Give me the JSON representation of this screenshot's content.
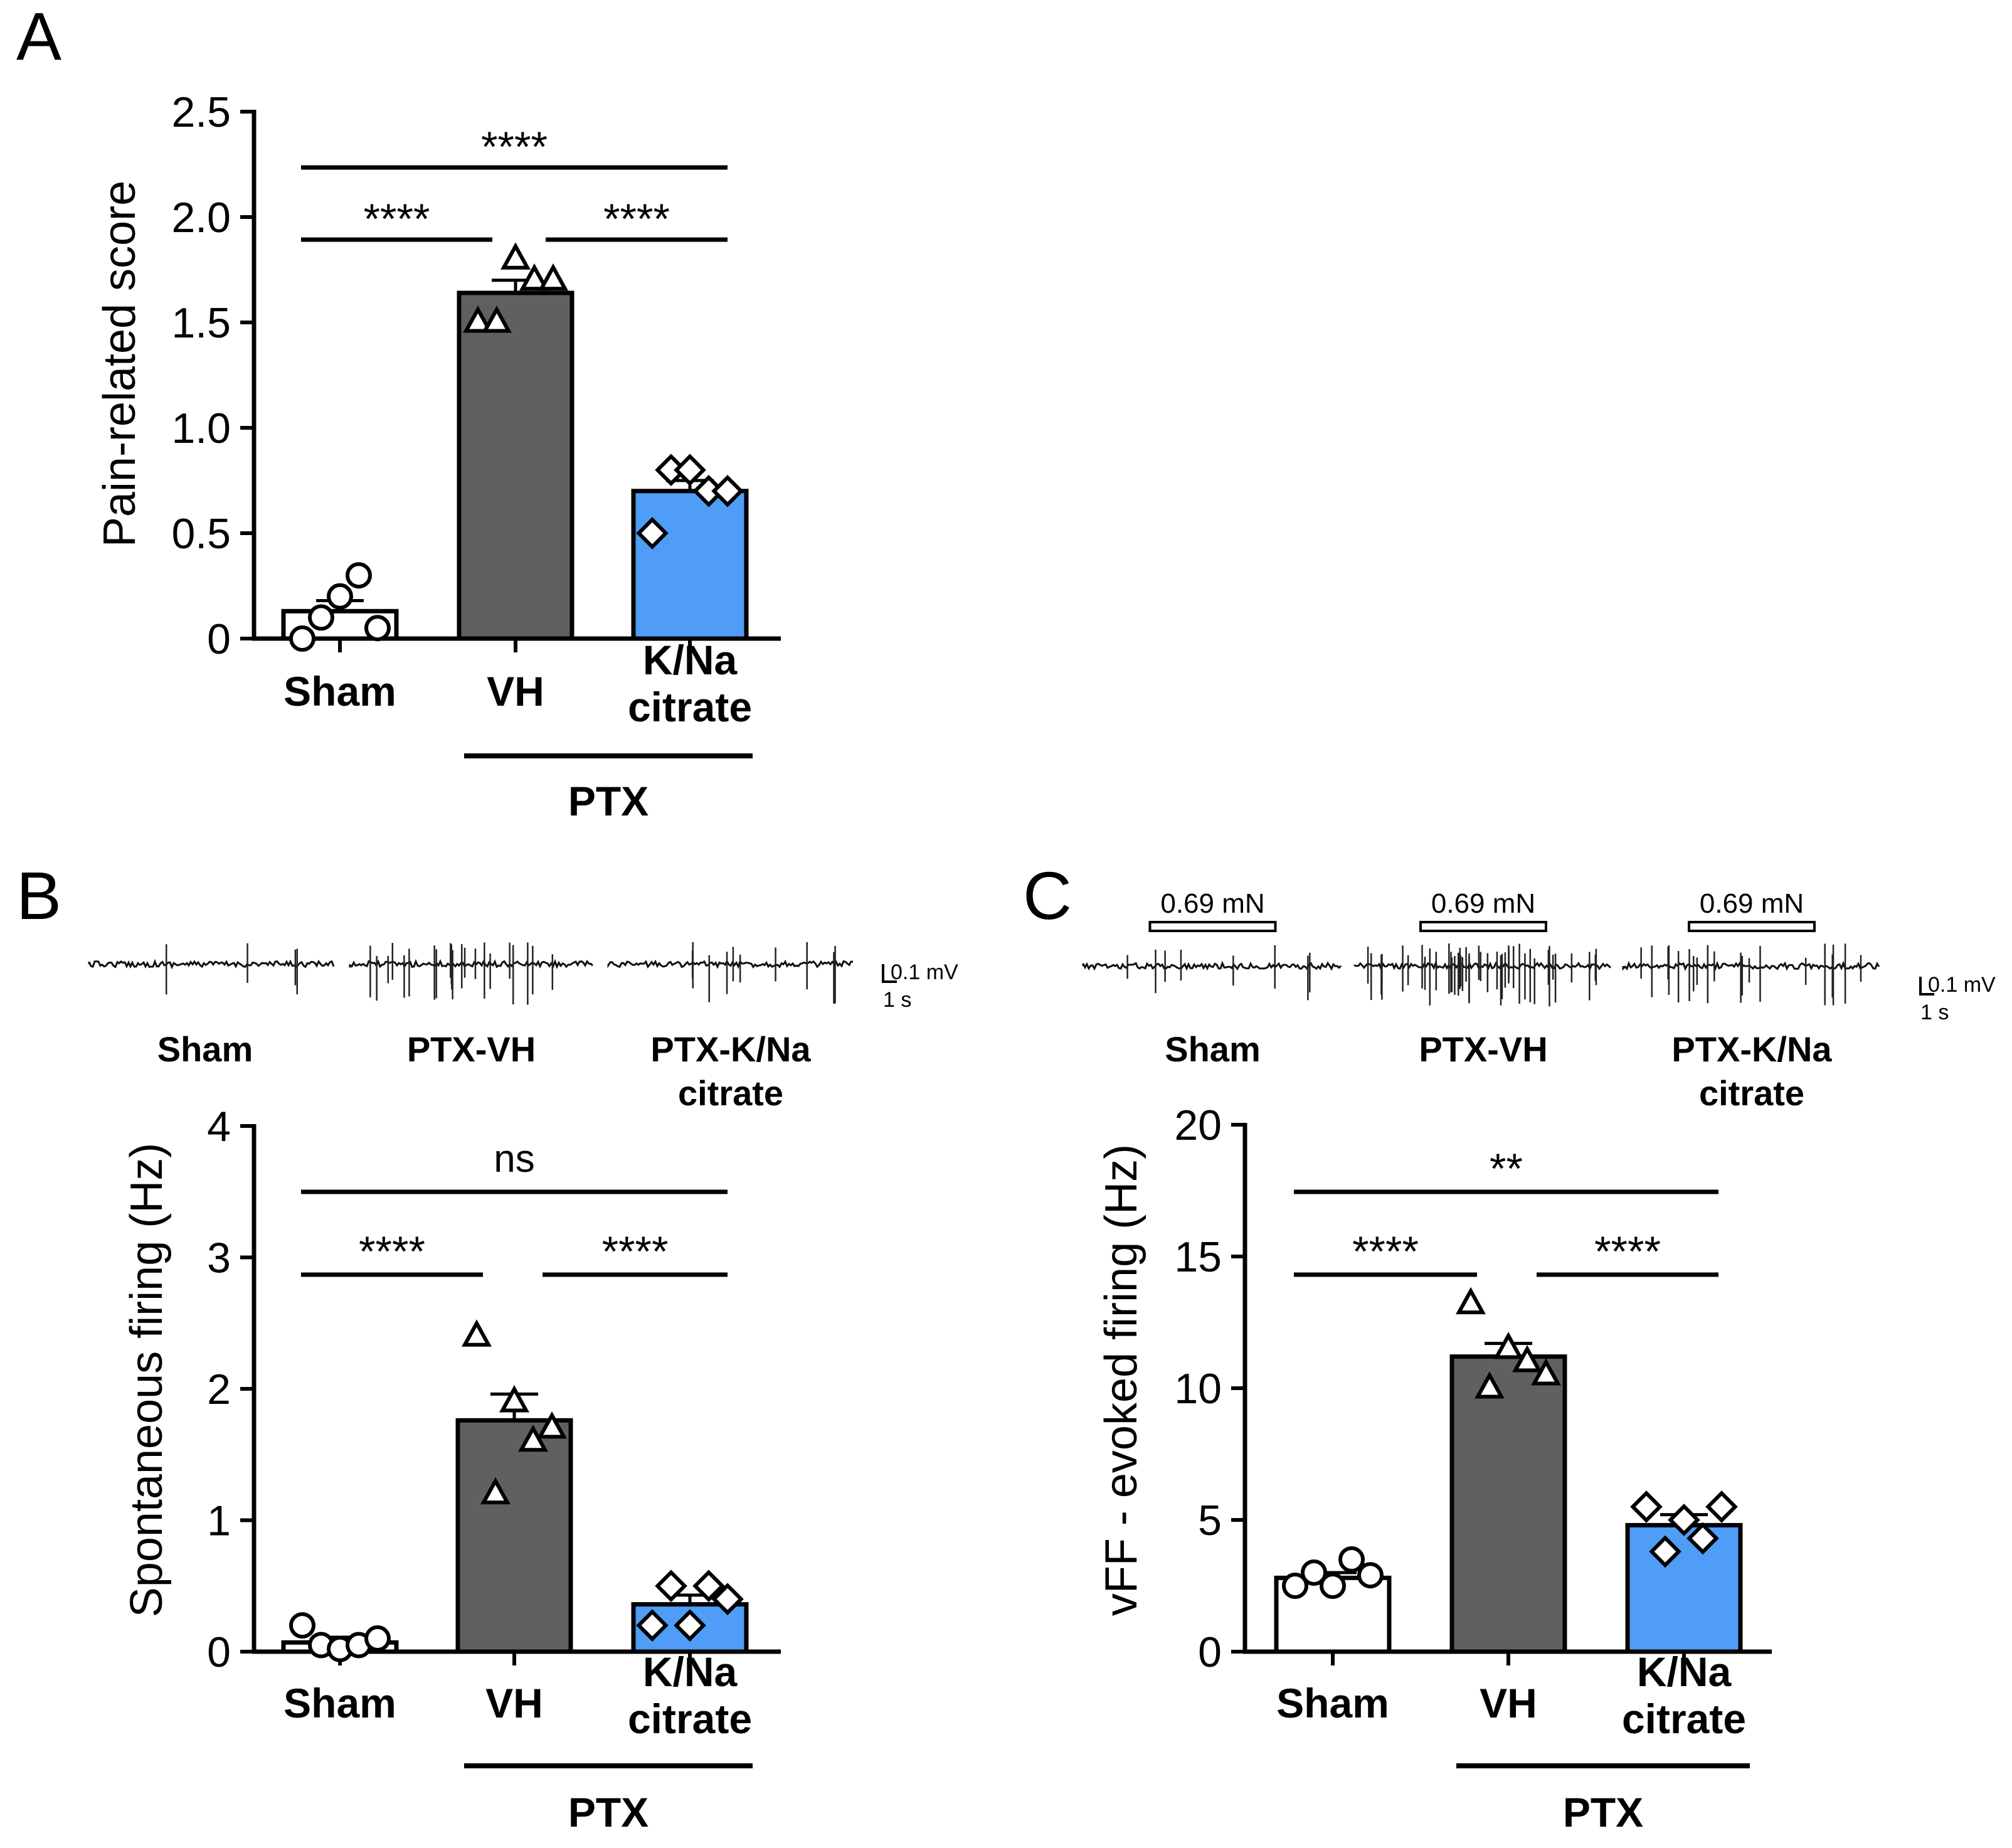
{
  "figure": {
    "panel_labels": [
      "A",
      "B",
      "C"
    ],
    "group_label": "PTX",
    "colors": {
      "sham": "#ffffff",
      "vh": "#606060",
      "citrate": "#4f9df7",
      "ink": "#000000"
    }
  },
  "chart_data": [
    {
      "panel": "A",
      "type": "bar",
      "ylabel": "Pain-related score",
      "ylim": [
        0,
        2.5
      ],
      "yticks": [
        0,
        0.5,
        1.0,
        1.5,
        2.0,
        2.5
      ],
      "ytick_labels": [
        "0",
        "0.5",
        "1.0",
        "1.5",
        "2.0",
        "2.5"
      ],
      "categories": [
        {
          "lines": [
            "Sham"
          ]
        },
        {
          "lines": [
            "VH"
          ]
        },
        {
          "lines": [
            "K/Na",
            "citrate"
          ]
        }
      ],
      "group_label": "PTX",
      "values": [
        0.13,
        1.64,
        0.7
      ],
      "sem": [
        0.05,
        0.06,
        0.05
      ],
      "points": [
        [
          0.0,
          0.1,
          0.2,
          0.3,
          0.05
        ],
        [
          1.5,
          1.5,
          1.8,
          1.7,
          1.7
        ],
        [
          0.5,
          0.8,
          0.8,
          0.7,
          0.7
        ]
      ],
      "comparisons": [
        {
          "from": 0,
          "to": 2,
          "label": "****",
          "level": 2
        },
        {
          "from": 0,
          "to": 1,
          "label": "****",
          "level": 1
        },
        {
          "from": 1,
          "to": 2,
          "label": "****",
          "level": 1
        }
      ]
    },
    {
      "panel": "B",
      "type": "bar",
      "ylabel": "Spontaneous firing (Hz)",
      "ylim": [
        0,
        4
      ],
      "yticks": [
        0,
        1,
        2,
        3,
        4
      ],
      "ytick_labels": [
        "0",
        "1",
        "2",
        "3",
        "4"
      ],
      "categories": [
        {
          "lines": [
            "Sham"
          ]
        },
        {
          "lines": [
            "VH"
          ]
        },
        {
          "lines": [
            "K/Na",
            "citrate"
          ]
        }
      ],
      "group_label": "PTX",
      "values": [
        0.07,
        1.76,
        0.36
      ],
      "sem": [
        0.04,
        0.2,
        0.07
      ],
      "points": [
        [
          0.2,
          0.05,
          0.02,
          0.05,
          0.1
        ],
        [
          2.4,
          1.2,
          1.9,
          1.6,
          1.7
        ],
        [
          0.2,
          0.5,
          0.2,
          0.5,
          0.4
        ]
      ],
      "comparisons": [
        {
          "from": 0,
          "to": 2,
          "label": "ns",
          "level": 2
        },
        {
          "from": 0,
          "to": 1,
          "label": "****",
          "level": 1
        },
        {
          "from": 1,
          "to": 2,
          "label": "****",
          "level": 1
        }
      ],
      "traces": {
        "scale_mv": "0.1 mV",
        "scale_s": "1 s",
        "labels": [
          [
            "Sham"
          ],
          [
            "PTX-VH"
          ],
          [
            "PTX-K/Na",
            "citrate"
          ]
        ],
        "stimulus_label": ""
      }
    },
    {
      "panel": "C",
      "type": "bar",
      "ylabel": "vFF - evoked firing (Hz)",
      "ylim": [
        0,
        20
      ],
      "yticks": [
        0,
        5,
        10,
        15,
        20
      ],
      "ytick_labels": [
        "0",
        "5",
        "10",
        "15",
        "20"
      ],
      "categories": [
        {
          "lines": [
            "Sham"
          ]
        },
        {
          "lines": [
            "VH"
          ]
        },
        {
          "lines": [
            "K/Na",
            "citrate"
          ]
        }
      ],
      "group_label": "PTX",
      "values": [
        2.8,
        11.2,
        4.8
      ],
      "sem": [
        0.2,
        0.5,
        0.4
      ],
      "points": [
        [
          2.5,
          3.0,
          2.5,
          3.5,
          2.9
        ],
        [
          13.2,
          10.0,
          11.5,
          11.0,
          10.5
        ],
        [
          5.5,
          3.8,
          5.0,
          4.3,
          5.5
        ]
      ],
      "comparisons": [
        {
          "from": 0,
          "to": 2,
          "label": "**",
          "level": 2
        },
        {
          "from": 0,
          "to": 1,
          "label": "****",
          "level": 1
        },
        {
          "from": 1,
          "to": 2,
          "label": "****",
          "level": 1
        }
      ],
      "traces": {
        "scale_mv": "0.1 mV",
        "scale_s": "1 s",
        "labels": [
          [
            "Sham"
          ],
          [
            "PTX-VH"
          ],
          [
            "PTX-K/Na",
            "citrate"
          ]
        ],
        "stimulus_label": "0.69 mN"
      }
    }
  ]
}
